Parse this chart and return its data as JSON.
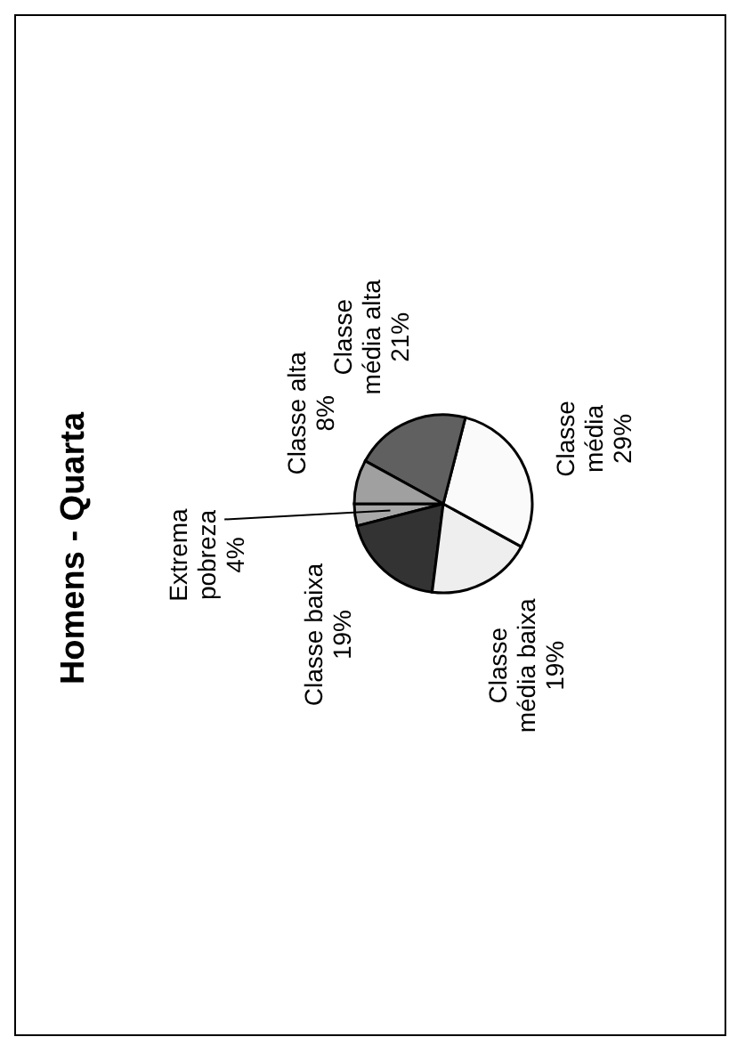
{
  "chart_data": {
    "type": "pie",
    "title": "Homens - Quarta",
    "categories": [
      "Extrema pobreza",
      "Classe baixa",
      "Classe média baixa",
      "Classe média",
      "Classe média alta",
      "Classe alta"
    ],
    "values": [
      4,
      19,
      19,
      29,
      21,
      8
    ],
    "value_labels": [
      "4%",
      "19%",
      "19%",
      "29%",
      "21%",
      "8%"
    ],
    "colors": [
      "#a8a8a8",
      "#333333",
      "#eeeeee",
      "#fafafa",
      "#606060",
      "#a0a0a0"
    ],
    "legend": false
  }
}
